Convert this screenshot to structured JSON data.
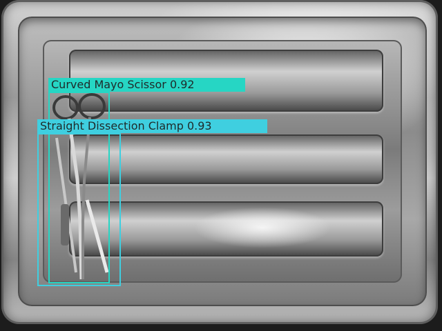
{
  "detections": [
    {
      "label": "Curved Mayo Scissor",
      "score": "0.92",
      "color": "#26d6c4"
    },
    {
      "label": "Straight Dissection Clamp",
      "score": "0.93",
      "color": "#3fcfe0"
    }
  ]
}
